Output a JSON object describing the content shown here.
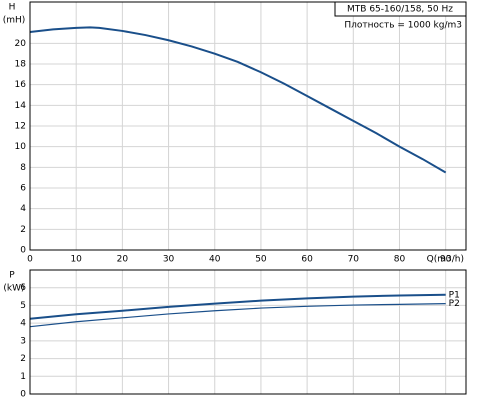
{
  "chart_data": [
    {
      "type": "line",
      "y_label_top": "H",
      "y_label": "(mH)",
      "x_label": "Q(m3/h)",
      "annotations": [
        "MTB 65-160/158, 50 Hz",
        "Плотность = 1000 kg/m3"
      ],
      "x": [
        0,
        5,
        10,
        13,
        15,
        20,
        25,
        30,
        35,
        40,
        45,
        50,
        55,
        60,
        65,
        70,
        75,
        80,
        85,
        90
      ],
      "series": [
        {
          "color": "#1a4f8a",
          "values": [
            21.1,
            21.35,
            21.5,
            21.55,
            21.5,
            21.2,
            20.8,
            20.3,
            19.7,
            19.0,
            18.2,
            17.2,
            16.1,
            14.9,
            13.7,
            12.5,
            11.3,
            10.0,
            8.8,
            7.5
          ]
        }
      ],
      "xlim": [
        0,
        94.4
      ],
      "ylim": [
        0,
        24
      ],
      "xticks": [
        0,
        10,
        20,
        30,
        40,
        50,
        60,
        70,
        80,
        90
      ],
      "yticks": [
        0,
        2,
        4,
        6,
        8,
        10,
        12,
        14,
        16,
        18,
        20
      ],
      "grid": true
    },
    {
      "type": "line",
      "y_label_top": "P",
      "y_label": "(kW)",
      "x": [
        0,
        10,
        20,
        30,
        40,
        50,
        60,
        70,
        80,
        90
      ],
      "series": [
        {
          "name": "P1",
          "color": "#1a4f8a",
          "values": [
            4.25,
            4.5,
            4.7,
            4.92,
            5.1,
            5.27,
            5.4,
            5.5,
            5.56,
            5.6
          ]
        },
        {
          "name": "P2",
          "color": "#1a4f8a",
          "values": [
            3.8,
            4.08,
            4.3,
            4.52,
            4.7,
            4.85,
            4.95,
            5.02,
            5.06,
            5.1
          ]
        }
      ],
      "xlim": [
        0,
        94.4
      ],
      "ylim": [
        0,
        7
      ],
      "xticks": [
        0,
        10,
        20,
        30,
        40,
        50,
        60,
        70,
        80,
        90
      ],
      "yticks": [
        0,
        1,
        2,
        3,
        4,
        5,
        6
      ],
      "grid": true
    }
  ]
}
